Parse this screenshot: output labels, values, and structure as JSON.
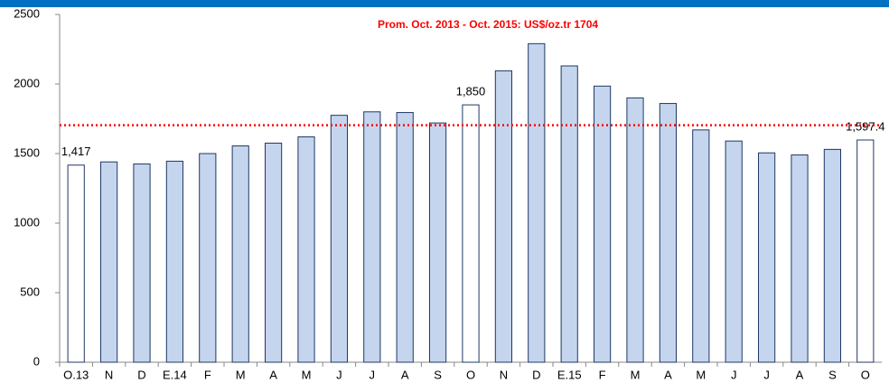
{
  "chart_data": {
    "type": "bar",
    "categories": [
      "O.13",
      "N",
      "D",
      "E.14",
      "F",
      "M",
      "A",
      "M",
      "J",
      "J",
      "A",
      "S",
      "O",
      "N",
      "D",
      "E.15",
      "F",
      "M",
      "A",
      "M",
      "J",
      "J",
      "A",
      "S",
      "O"
    ],
    "values": [
      1417,
      1440,
      1425,
      1445,
      1500,
      1555,
      1575,
      1620,
      1775,
      1800,
      1795,
      1720,
      1850,
      2095,
      2290,
      2130,
      1985,
      1900,
      1860,
      1670,
      1590,
      1505,
      1490,
      1530,
      1597.4
    ],
    "value_labels": [
      "1,417",
      null,
      null,
      null,
      null,
      null,
      null,
      null,
      null,
      null,
      null,
      null,
      "1,850",
      null,
      null,
      null,
      null,
      null,
      null,
      null,
      null,
      null,
      null,
      null,
      "1,597.4"
    ],
    "colors": [
      "#ffffff",
      "#c5d5ee",
      "#c5d5ee",
      "#c5d5ee",
      "#c5d5ee",
      "#c5d5ee",
      "#c5d5ee",
      "#c5d5ee",
      "#c5d5ee",
      "#c5d5ee",
      "#c5d5ee",
      "#c5d5ee",
      "#ffffff",
      "#c5d5ee",
      "#c5d5ee",
      "#c5d5ee",
      "#c5d5ee",
      "#c5d5ee",
      "#c5d5ee",
      "#c5d5ee",
      "#c5d5ee",
      "#c5d5ee",
      "#c5d5ee",
      "#c5d5ee",
      "#ffffff"
    ],
    "border_color": "#1f3864",
    "ylim": [
      0,
      2500
    ],
    "yticks": [
      0,
      500,
      1000,
      1500,
      2000,
      2500
    ],
    "grid": false,
    "reference_line": {
      "value": 1704,
      "label": "Prom. Oct. 2013 - Oct. 2015: US$/oz.tr 1704",
      "color": "#ff0000"
    }
  }
}
